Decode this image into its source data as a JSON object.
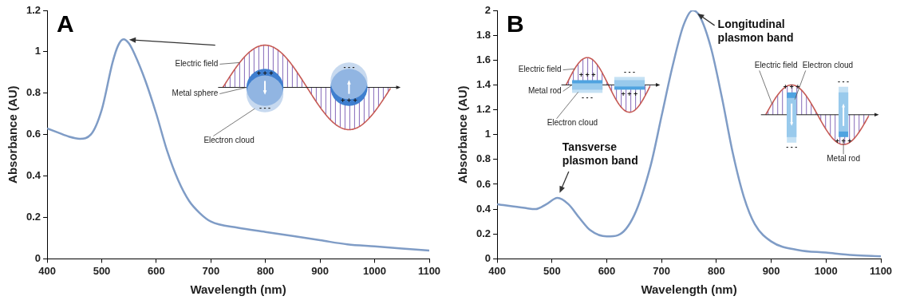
{
  "chart_data": [
    {
      "panel": "A",
      "type": "line",
      "x_label": "Wavelength (nm)",
      "y_label": "Absorbance (AU)",
      "color": "#7f9cc6",
      "grid": false,
      "xlim": [
        400,
        1100
      ],
      "xticks": [
        400,
        500,
        600,
        700,
        800,
        900,
        1000,
        1100
      ],
      "ylim": [
        0,
        1.2
      ],
      "yticks": [
        0,
        0.2,
        0.4,
        0.6,
        0.8,
        1,
        1.2
      ],
      "x": [
        400,
        420,
        440,
        460,
        480,
        500,
        520,
        530,
        540,
        550,
        560,
        580,
        600,
        620,
        640,
        660,
        680,
        700,
        750,
        800,
        850,
        900,
        950,
        1000,
        1050,
        1100
      ],
      "values": [
        0.63,
        0.61,
        0.59,
        0.58,
        0.6,
        0.72,
        0.95,
        1.03,
        1.06,
        1.04,
        0.99,
        0.86,
        0.7,
        0.52,
        0.38,
        0.28,
        0.22,
        0.18,
        0.15,
        0.13,
        0.11,
        0.09,
        0.07,
        0.06,
        0.05,
        0.04
      ],
      "annotations": [
        {
          "x": 540,
          "y": 1.06
        }
      ],
      "insets": [
        {
          "electric_field": "Electric field",
          "particle": "Metal sphere",
          "electron_cloud": "Electron cloud",
          "charges": [
            "+ + +",
            "- - -"
          ]
        }
      ]
    },
    {
      "panel": "B",
      "type": "line",
      "x_label": "Wavelength (nm)",
      "y_label": "Absorbance (AU)",
      "color": "#7f9cc6",
      "grid": false,
      "xlim": [
        400,
        1100
      ],
      "xticks": [
        400,
        500,
        600,
        700,
        800,
        900,
        1000,
        1100
      ],
      "ylim": [
        0,
        2
      ],
      "yticks": [
        0,
        0.2,
        0.4,
        0.6,
        0.8,
        1,
        1.2,
        1.4,
        1.6,
        1.8,
        2
      ],
      "x": [
        400,
        450,
        470,
        490,
        510,
        530,
        550,
        570,
        600,
        620,
        650,
        680,
        700,
        720,
        740,
        757,
        770,
        790,
        810,
        830,
        850,
        870,
        900,
        950,
        1000,
        1050,
        1100
      ],
      "values": [
        0.44,
        0.41,
        0.4,
        0.44,
        0.49,
        0.44,
        0.33,
        0.23,
        0.18,
        0.19,
        0.35,
        0.75,
        1.15,
        1.55,
        1.88,
        2.0,
        1.95,
        1.7,
        1.3,
        0.85,
        0.5,
        0.28,
        0.14,
        0.07,
        0.05,
        0.03,
        0.02
      ],
      "annotations": [
        {
          "text": "Tansverse plasmon band",
          "x": 510,
          "y": 0.49
        },
        {
          "text": "Longitudinal plasmon band",
          "x": 757,
          "y": 2.0
        }
      ],
      "insets": [
        {
          "electric_field": "Electric field",
          "particle": "Metal rod",
          "electron_cloud": "Electron cloud",
          "charges": [
            "+ + +",
            "- - -"
          ],
          "orientation": "horizontal"
        },
        {
          "electric_field": "Electric field",
          "particle": "Metal rod",
          "electron_cloud": "Electron cloud",
          "charges": [
            "+ + +",
            "- - -"
          ],
          "orientation": "vertical"
        }
      ]
    }
  ]
}
